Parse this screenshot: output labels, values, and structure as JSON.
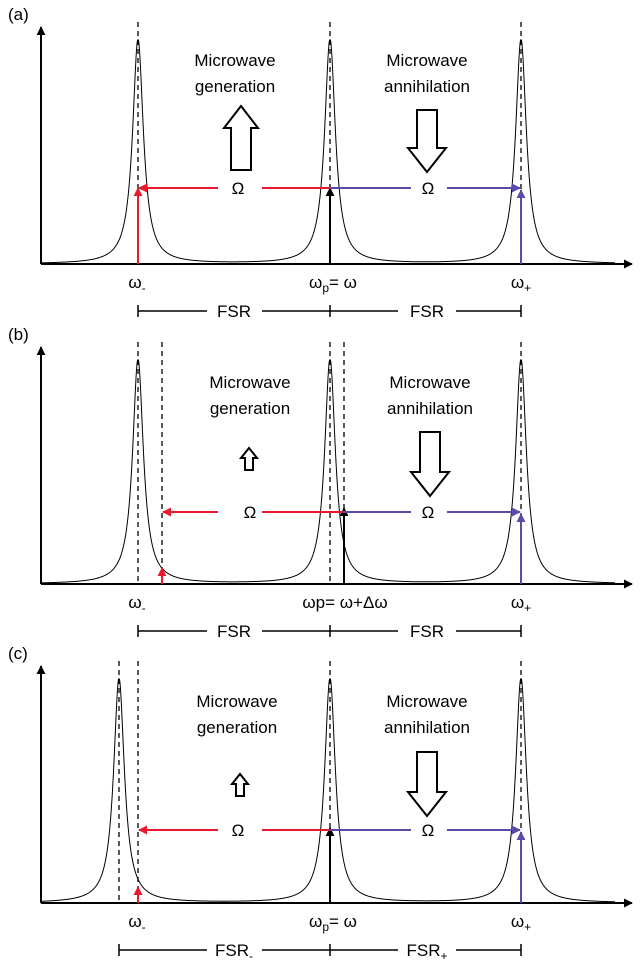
{
  "colors": {
    "red": "#e8192c",
    "blue": "#5b4aa8",
    "black": "#000000"
  },
  "panels": [
    {
      "label": "(a)",
      "gen_caption": [
        "Microwave",
        "generation"
      ],
      "ann_caption": [
        "Microwave",
        "annihilation"
      ],
      "gen_arrow_size": "large",
      "ann_arrow_size": "large",
      "omega_label": "Ω",
      "omega_left_label": "Ω",
      "omega_right_label": "Ω",
      "w_minus_base": "ω",
      "w_minus_sub": "-",
      "w_plus_base": "ω",
      "w_plus_sub": "+",
      "pump_base": "ω",
      "pump_sub": "p",
      "pump_rest": "= ω",
      "fsr_left": "FSR",
      "fsr_left_sub": "",
      "fsr_right": "FSR",
      "fsr_right_sub": ""
    },
    {
      "label": "(b)",
      "gen_caption": [
        "Microwave",
        "generation"
      ],
      "ann_caption": [
        "Microwave",
        "annihilation"
      ],
      "gen_arrow_size": "small",
      "ann_arrow_size": "large",
      "omega_left_label": "Ω",
      "omega_right_label": "Ω",
      "w_minus_base": "ω",
      "w_minus_sub": "-",
      "w_plus_base": "ω",
      "w_plus_sub": "+",
      "pump_base": "ωp",
      "pump_sub": "",
      "pump_rest": "= ω+Δω",
      "fsr_left": "FSR",
      "fsr_left_sub": "",
      "fsr_right": "FSR",
      "fsr_right_sub": ""
    },
    {
      "label": "(c)",
      "gen_caption": [
        "Microwave",
        "generation"
      ],
      "ann_caption": [
        "Microwave",
        "annihilation"
      ],
      "gen_arrow_size": "small",
      "ann_arrow_size": "large",
      "omega_left_label": "Ω",
      "omega_right_label": "Ω",
      "w_minus_base": "ω",
      "w_minus_sub": "-",
      "w_plus_base": "ω",
      "w_plus_sub": "+",
      "pump_base": "ω",
      "pump_sub": "p",
      "pump_rest": "= ω",
      "fsr_left": "FSR",
      "fsr_left_sub": "-",
      "fsr_right": "FSR",
      "fsr_right_sub": "+"
    }
  ]
}
